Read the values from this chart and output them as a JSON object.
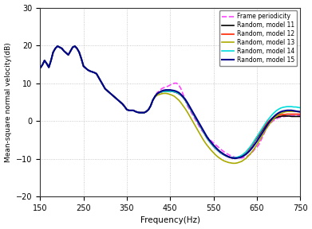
{
  "title": "",
  "xlabel": "Frequency(Hz)",
  "ylabel": "Mean-square normal velocity(dB)",
  "xlim": [
    150,
    750
  ],
  "ylim": [
    -20,
    30
  ],
  "xticks": [
    150,
    250,
    350,
    450,
    550,
    650,
    750
  ],
  "yticks": [
    -20,
    -10,
    0,
    10,
    20,
    30
  ],
  "grid_color": "#bbbbbb",
  "background_color": "#ffffff",
  "legend": {
    "labels": [
      "Frame periodicity",
      "Random, model 11",
      "Random, model 12",
      "Random, model 13",
      "Random, model 14",
      "Random, model 15"
    ],
    "colors": [
      "#ff44ff",
      "#000000",
      "#ff2200",
      "#aaaa00",
      "#00dddd",
      "#00008b"
    ],
    "styles": [
      "--",
      "-",
      "-",
      "-",
      "-",
      "-"
    ],
    "linewidths": [
      1.2,
      1.2,
      1.2,
      1.2,
      1.2,
      1.5
    ]
  },
  "freq": [
    150,
    155,
    160,
    165,
    170,
    175,
    180,
    185,
    190,
    195,
    200,
    205,
    210,
    215,
    220,
    225,
    230,
    235,
    240,
    245,
    250,
    255,
    260,
    265,
    270,
    275,
    280,
    285,
    290,
    295,
    300,
    305,
    310,
    315,
    320,
    325,
    330,
    335,
    340,
    345,
    350,
    355,
    360,
    365,
    370,
    375,
    380,
    385,
    390,
    395,
    400,
    405,
    410,
    415,
    420,
    425,
    430,
    435,
    440,
    445,
    450,
    455,
    460,
    465,
    470,
    475,
    480,
    485,
    490,
    495,
    500,
    505,
    510,
    515,
    520,
    525,
    530,
    535,
    540,
    545,
    550,
    555,
    560,
    565,
    570,
    575,
    580,
    585,
    590,
    595,
    600,
    605,
    610,
    615,
    620,
    625,
    630,
    635,
    640,
    645,
    650,
    655,
    660,
    665,
    670,
    675,
    680,
    685,
    690,
    695,
    700,
    705,
    710,
    715,
    720,
    725,
    730,
    735,
    740,
    745,
    750
  ],
  "curves": {
    "frame_periodicity": [
      14.0,
      14.8,
      16.0,
      15.2,
      14.2,
      16.0,
      18.2,
      19.2,
      19.8,
      19.5,
      19.2,
      18.5,
      18.0,
      17.5,
      18.5,
      19.5,
      19.8,
      19.2,
      18.2,
      16.5,
      14.5,
      14.0,
      13.5,
      13.2,
      13.0,
      12.8,
      12.5,
      11.5,
      10.5,
      9.5,
      8.5,
      8.0,
      7.5,
      7.0,
      6.5,
      6.0,
      5.5,
      5.0,
      4.5,
      3.8,
      3.0,
      2.8,
      2.8,
      2.8,
      2.5,
      2.3,
      2.2,
      2.2,
      2.2,
      2.5,
      3.0,
      4.0,
      5.5,
      6.5,
      7.5,
      8.0,
      8.5,
      8.8,
      9.0,
      9.2,
      9.5,
      9.8,
      10.0,
      10.0,
      9.5,
      8.5,
      7.0,
      5.5,
      4.0,
      3.0,
      2.0,
      1.0,
      0.0,
      -1.0,
      -2.0,
      -2.8,
      -3.5,
      -4.2,
      -4.8,
      -5.3,
      -5.8,
      -6.3,
      -6.8,
      -7.3,
      -7.8,
      -8.2,
      -8.6,
      -8.9,
      -9.2,
      -9.4,
      -9.6,
      -9.7,
      -9.8,
      -9.8,
      -9.7,
      -9.5,
      -9.2,
      -8.8,
      -8.2,
      -7.5,
      -7.0,
      -6.2,
      -5.0,
      -3.8,
      -2.5,
      -1.5,
      -0.8,
      -0.2,
      0.2,
      0.5,
      0.8,
      1.0,
      1.1,
      1.2,
      1.3,
      1.4,
      1.4,
      1.4,
      1.4,
      1.4,
      1.5
    ],
    "model11": [
      14.0,
      14.8,
      16.0,
      15.2,
      14.2,
      16.0,
      18.2,
      19.2,
      19.8,
      19.5,
      19.2,
      18.5,
      18.0,
      17.5,
      18.5,
      19.5,
      19.8,
      19.2,
      18.2,
      16.5,
      14.5,
      14.0,
      13.5,
      13.2,
      13.0,
      12.8,
      12.5,
      11.5,
      10.5,
      9.5,
      8.5,
      8.0,
      7.5,
      7.0,
      6.5,
      6.0,
      5.5,
      5.0,
      4.5,
      3.8,
      3.0,
      2.8,
      2.8,
      2.8,
      2.5,
      2.3,
      2.2,
      2.2,
      2.2,
      2.5,
      3.0,
      4.0,
      5.5,
      6.5,
      7.2,
      7.5,
      7.7,
      7.8,
      7.8,
      7.8,
      7.8,
      7.8,
      7.7,
      7.5,
      7.2,
      6.8,
      6.2,
      5.5,
      4.5,
      3.5,
      2.5,
      1.5,
      0.5,
      -0.5,
      -1.5,
      -2.5,
      -3.5,
      -4.5,
      -5.3,
      -6.0,
      -6.7,
      -7.3,
      -7.8,
      -8.3,
      -8.7,
      -9.0,
      -9.3,
      -9.5,
      -9.7,
      -9.8,
      -9.8,
      -9.7,
      -9.5,
      -9.2,
      -8.8,
      -8.3,
      -7.7,
      -7.0,
      -6.2,
      -5.3,
      -4.5,
      -3.7,
      -2.8,
      -2.0,
      -1.2,
      -0.6,
      -0.1,
      0.3,
      0.6,
      0.9,
      1.1,
      1.2,
      1.3,
      1.3,
      1.3,
      1.3,
      1.2,
      1.2,
      1.2,
      1.2,
      1.2
    ],
    "model12": [
      14.0,
      14.8,
      16.0,
      15.2,
      14.2,
      16.0,
      18.2,
      19.2,
      19.8,
      19.5,
      19.2,
      18.5,
      18.0,
      17.5,
      18.5,
      19.5,
      19.8,
      19.2,
      18.2,
      16.5,
      14.5,
      14.0,
      13.5,
      13.2,
      13.0,
      12.8,
      12.5,
      11.5,
      10.5,
      9.5,
      8.5,
      8.0,
      7.5,
      7.0,
      6.5,
      6.0,
      5.5,
      5.0,
      4.5,
      3.8,
      3.0,
      2.8,
      2.8,
      2.8,
      2.5,
      2.3,
      2.2,
      2.2,
      2.2,
      2.5,
      3.0,
      4.0,
      5.5,
      6.5,
      7.2,
      7.5,
      7.7,
      7.8,
      7.8,
      7.8,
      7.8,
      7.8,
      7.7,
      7.5,
      7.2,
      6.8,
      6.2,
      5.5,
      4.5,
      3.5,
      2.5,
      1.5,
      0.5,
      -0.5,
      -1.5,
      -2.5,
      -3.5,
      -4.5,
      -5.3,
      -6.0,
      -6.7,
      -7.3,
      -7.8,
      -8.3,
      -8.7,
      -9.0,
      -9.3,
      -9.5,
      -9.7,
      -9.8,
      -9.8,
      -9.7,
      -9.5,
      -9.2,
      -8.8,
      -8.3,
      -7.7,
      -7.0,
      -6.2,
      -5.2,
      -4.3,
      -3.5,
      -2.6,
      -1.8,
      -1.0,
      -0.3,
      0.2,
      0.7,
      1.0,
      1.3,
      1.5,
      1.6,
      1.7,
      1.7,
      1.8,
      1.8,
      1.8,
      1.8,
      1.8,
      1.8,
      1.8
    ],
    "model13": [
      14.0,
      14.8,
      16.0,
      15.2,
      14.2,
      16.0,
      18.2,
      19.2,
      19.8,
      19.5,
      19.2,
      18.5,
      18.0,
      17.5,
      18.5,
      19.5,
      19.8,
      19.2,
      18.2,
      16.5,
      14.5,
      14.0,
      13.5,
      13.2,
      13.0,
      12.8,
      12.5,
      11.5,
      10.5,
      9.5,
      8.5,
      8.0,
      7.5,
      7.0,
      6.5,
      6.0,
      5.5,
      5.0,
      4.5,
      3.8,
      3.0,
      2.8,
      2.8,
      2.8,
      2.5,
      2.3,
      2.2,
      2.2,
      2.2,
      2.5,
      3.0,
      4.0,
      5.5,
      6.3,
      6.8,
      7.0,
      7.2,
      7.3,
      7.3,
      7.2,
      7.0,
      6.8,
      6.5,
      6.0,
      5.5,
      4.8,
      4.0,
      3.2,
      2.3,
      1.3,
      0.3,
      -0.7,
      -1.7,
      -2.7,
      -3.7,
      -4.7,
      -5.6,
      -6.4,
      -7.1,
      -7.8,
      -8.4,
      -9.0,
      -9.5,
      -9.9,
      -10.3,
      -10.6,
      -10.8,
      -11.0,
      -11.1,
      -11.2,
      -11.2,
      -11.1,
      -10.9,
      -10.7,
      -10.3,
      -9.9,
      -9.3,
      -8.7,
      -8.0,
      -7.2,
      -6.3,
      -5.4,
      -4.4,
      -3.4,
      -2.4,
      -1.5,
      -0.7,
      0.0,
      0.7,
      1.2,
      1.7,
      2.0,
      2.2,
      2.4,
      2.5,
      2.5,
      2.5,
      2.5,
      2.5,
      2.5,
      2.5
    ],
    "model14": [
      14.0,
      14.8,
      16.0,
      15.2,
      14.2,
      16.0,
      18.2,
      19.2,
      19.8,
      19.5,
      19.2,
      18.5,
      18.0,
      17.5,
      18.5,
      19.5,
      19.8,
      19.2,
      18.2,
      16.5,
      14.5,
      14.0,
      13.5,
      13.2,
      13.0,
      12.8,
      12.5,
      11.5,
      10.5,
      9.5,
      8.5,
      8.0,
      7.5,
      7.0,
      6.5,
      6.0,
      5.5,
      5.0,
      4.5,
      3.8,
      3.0,
      2.8,
      2.8,
      2.8,
      2.5,
      2.3,
      2.2,
      2.2,
      2.2,
      2.5,
      3.0,
      4.0,
      5.5,
      6.5,
      7.2,
      7.5,
      7.7,
      7.8,
      7.8,
      7.8,
      7.8,
      7.8,
      7.7,
      7.5,
      7.2,
      6.8,
      6.2,
      5.5,
      4.5,
      3.5,
      2.5,
      1.5,
      0.5,
      -0.5,
      -1.5,
      -2.5,
      -3.5,
      -4.5,
      -5.3,
      -6.0,
      -6.7,
      -7.3,
      -7.8,
      -8.3,
      -8.7,
      -9.0,
      -9.3,
      -9.5,
      -9.7,
      -9.7,
      -9.7,
      -9.6,
      -9.4,
      -9.1,
      -8.7,
      -8.2,
      -7.5,
      -6.8,
      -6.0,
      -5.1,
      -4.2,
      -3.3,
      -2.4,
      -1.5,
      -0.6,
      0.2,
      0.9,
      1.6,
      2.2,
      2.7,
      3.1,
      3.4,
      3.6,
      3.7,
      3.8,
      3.8,
      3.8,
      3.7,
      3.7,
      3.6,
      3.5
    ],
    "model15": [
      14.0,
      14.8,
      16.0,
      15.2,
      14.2,
      16.0,
      18.2,
      19.2,
      19.8,
      19.5,
      19.2,
      18.5,
      18.0,
      17.5,
      18.5,
      19.5,
      19.8,
      19.2,
      18.2,
      16.5,
      14.5,
      14.0,
      13.5,
      13.2,
      13.0,
      12.8,
      12.5,
      11.5,
      10.5,
      9.5,
      8.5,
      8.0,
      7.5,
      7.0,
      6.5,
      6.0,
      5.5,
      5.0,
      4.5,
      3.8,
      3.0,
      2.8,
      2.8,
      2.8,
      2.5,
      2.3,
      2.2,
      2.2,
      2.2,
      2.5,
      3.0,
      4.0,
      5.5,
      6.5,
      7.2,
      7.6,
      7.9,
      8.1,
      8.2,
      8.2,
      8.2,
      8.1,
      8.0,
      7.8,
      7.5,
      7.0,
      6.4,
      5.7,
      4.8,
      3.8,
      2.8,
      1.8,
      0.8,
      -0.2,
      -1.2,
      -2.2,
      -3.2,
      -4.2,
      -5.0,
      -5.7,
      -6.4,
      -7.0,
      -7.6,
      -8.1,
      -8.5,
      -8.9,
      -9.2,
      -9.5,
      -9.7,
      -9.8,
      -9.9,
      -9.8,
      -9.7,
      -9.5,
      -9.2,
      -8.8,
      -8.3,
      -7.7,
      -7.0,
      -6.2,
      -5.4,
      -4.5,
      -3.6,
      -2.7,
      -1.8,
      -0.9,
      -0.1,
      0.6,
      1.2,
      1.7,
      2.1,
      2.4,
      2.6,
      2.7,
      2.8,
      2.8,
      2.8,
      2.7,
      2.6,
      2.5,
      2.4
    ]
  }
}
